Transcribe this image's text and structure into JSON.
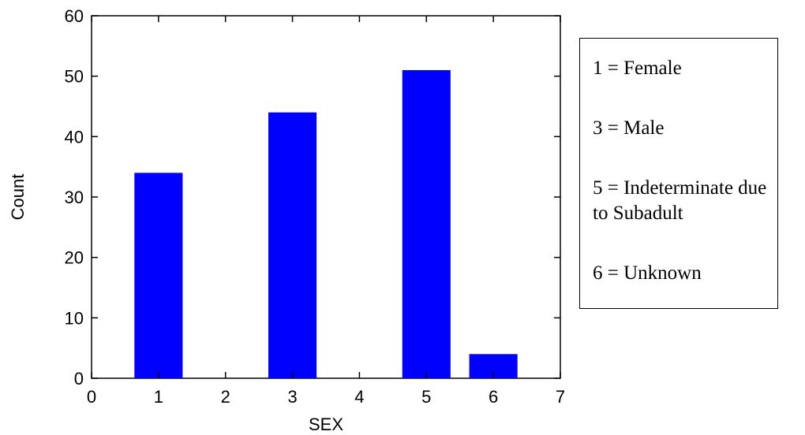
{
  "chart_data": {
    "type": "bar",
    "x": [
      1,
      3,
      5,
      6
    ],
    "values": [
      34,
      44,
      51,
      4
    ],
    "xlabel": "SEX",
    "ylabel": "Count",
    "xlim": [
      0,
      7
    ],
    "ylim": [
      0,
      60
    ],
    "xticks": [
      "0",
      "1",
      "2",
      "3",
      "4",
      "5",
      "6",
      "7"
    ],
    "yticks": [
      "0",
      "10",
      "20",
      "30",
      "40",
      "50",
      "60"
    ],
    "bar_color": "#0000ff",
    "grid": false
  },
  "legend": {
    "items": [
      "1 = Female",
      "3 = Male",
      "5 = Indeterminate due to Subadult",
      "6 = Unknown"
    ]
  }
}
